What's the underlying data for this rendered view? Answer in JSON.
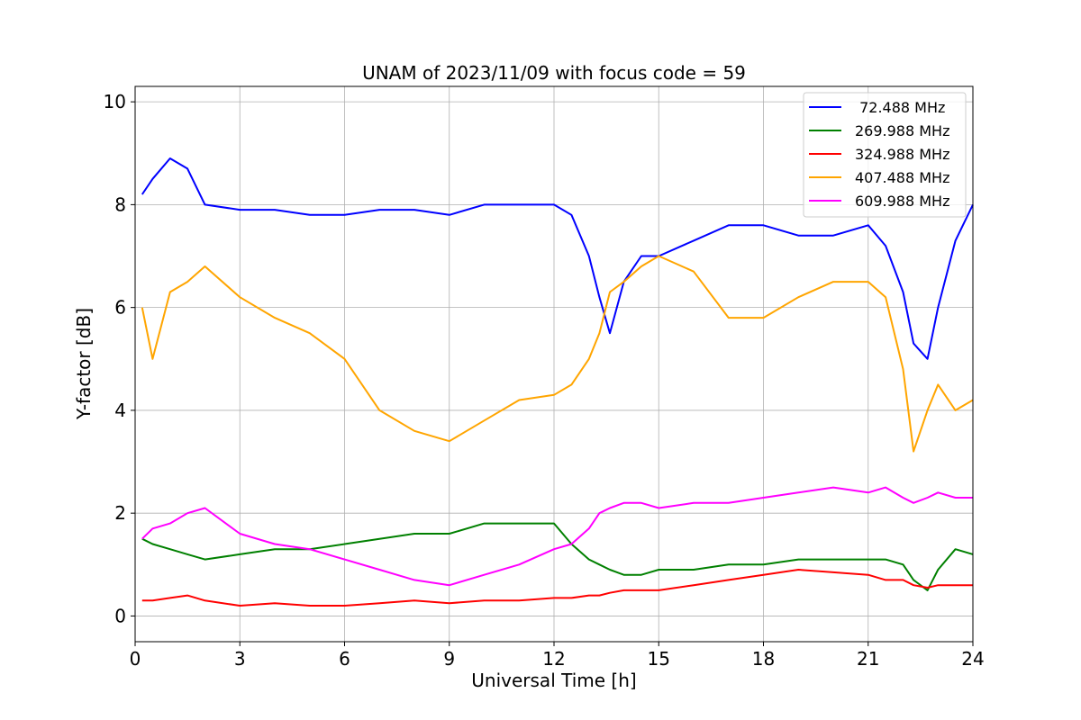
{
  "chart_data": {
    "type": "line",
    "title": "UNAM of 2023/11/09 with focus code = 59",
    "xlabel": "Universal Time [h]",
    "ylabel": "Y-factor [dB]",
    "xlim": [
      0,
      24
    ],
    "ylim": [
      -0.5,
      10.3
    ],
    "xticks": [
      0,
      3,
      6,
      9,
      12,
      15,
      18,
      21,
      24
    ],
    "yticks": [
      0,
      2,
      4,
      6,
      8,
      10
    ],
    "grid": true,
    "legend_position": "top-right",
    "x": [
      0.2,
      0.5,
      1,
      1.5,
      2,
      3,
      4,
      5,
      6,
      7,
      8,
      9,
      10,
      11,
      12,
      12.5,
      13,
      13.3,
      13.6,
      14,
      14.5,
      15,
      16,
      17,
      18,
      19,
      20,
      21,
      21.5,
      22,
      22.3,
      22.7,
      23,
      23.5,
      24
    ],
    "series": [
      {
        "name": " 72.488 MHz",
        "color": "#0000ff",
        "values": [
          8.2,
          8.5,
          8.9,
          8.7,
          8.0,
          7.9,
          7.9,
          7.8,
          7.8,
          7.9,
          7.9,
          7.8,
          8.0,
          8.0,
          8.0,
          7.8,
          7.0,
          6.2,
          5.5,
          6.5,
          7.0,
          7.0,
          7.3,
          7.6,
          7.6,
          7.4,
          7.4,
          7.6,
          7.2,
          6.3,
          5.3,
          5.0,
          6.0,
          7.3,
          8.0
        ]
      },
      {
        "name": "269.988 MHz",
        "color": "#008000",
        "values": [
          1.5,
          1.4,
          1.3,
          1.2,
          1.1,
          1.2,
          1.3,
          1.3,
          1.4,
          1.5,
          1.6,
          1.6,
          1.8,
          1.8,
          1.8,
          1.4,
          1.1,
          1.0,
          0.9,
          0.8,
          0.8,
          0.9,
          0.9,
          1.0,
          1.0,
          1.1,
          1.1,
          1.1,
          1.1,
          1.0,
          0.7,
          0.5,
          0.9,
          1.3,
          1.2
        ]
      },
      {
        "name": "324.988 MHz",
        "color": "#ff0000",
        "values": [
          0.3,
          0.3,
          0.35,
          0.4,
          0.3,
          0.2,
          0.25,
          0.2,
          0.2,
          0.25,
          0.3,
          0.25,
          0.3,
          0.3,
          0.35,
          0.35,
          0.4,
          0.4,
          0.45,
          0.5,
          0.5,
          0.5,
          0.6,
          0.7,
          0.8,
          0.9,
          0.85,
          0.8,
          0.7,
          0.7,
          0.6,
          0.55,
          0.6,
          0.6,
          0.6
        ]
      },
      {
        "name": "407.488 MHz",
        "color": "#ffa500",
        "values": [
          6.0,
          5.0,
          6.3,
          6.5,
          6.8,
          6.2,
          5.8,
          5.5,
          5.0,
          4.0,
          3.6,
          3.4,
          3.8,
          4.2,
          4.3,
          4.5,
          5.0,
          5.5,
          6.3,
          6.5,
          6.8,
          7.0,
          6.7,
          5.8,
          5.8,
          6.2,
          6.5,
          6.5,
          6.2,
          4.8,
          3.2,
          4.0,
          4.5,
          4.0,
          4.2
        ]
      },
      {
        "name": "609.988 MHz",
        "color": "#ff00ff",
        "values": [
          1.5,
          1.7,
          1.8,
          2.0,
          2.1,
          1.6,
          1.4,
          1.3,
          1.1,
          0.9,
          0.7,
          0.6,
          0.8,
          1.0,
          1.3,
          1.4,
          1.7,
          2.0,
          2.1,
          2.2,
          2.2,
          2.1,
          2.2,
          2.2,
          2.3,
          2.4,
          2.5,
          2.4,
          2.5,
          2.3,
          2.2,
          2.3,
          2.4,
          2.3,
          2.3
        ]
      }
    ]
  }
}
